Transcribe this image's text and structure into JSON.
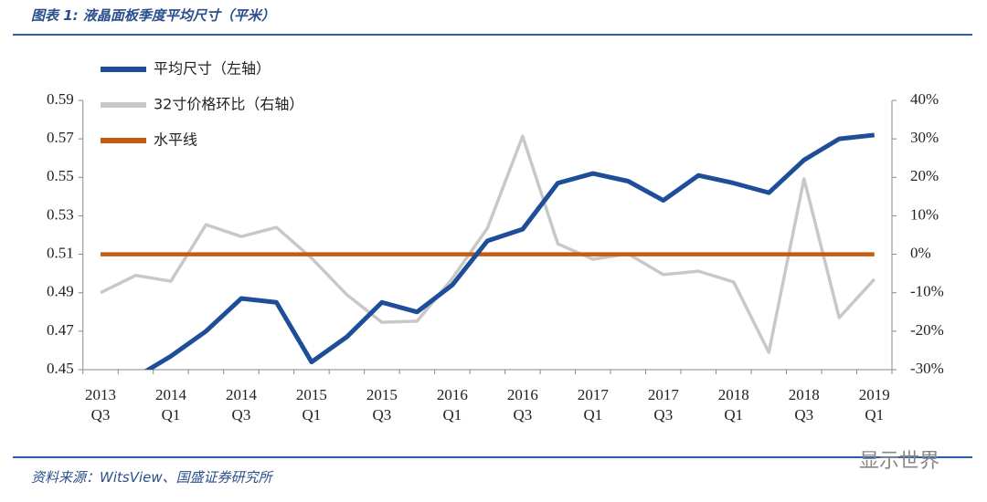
{
  "chart_data": {
    "type": "line",
    "title": "图表 1: 液晶面板季度平均尺寸（平米）",
    "source": "资料来源：WitsView、国盛证券研究所",
    "watermark": "显示世界",
    "categories": [
      "2013\nQ3",
      null,
      "2014\nQ1",
      null,
      "2014\nQ3",
      null,
      "2015\nQ1",
      null,
      "2015\nQ3",
      null,
      "2016\nQ1",
      null,
      "2016\nQ3",
      null,
      "2017\nQ1",
      null,
      "2017\nQ3",
      null,
      "2018\nQ1",
      null,
      "2018\nQ3",
      null,
      "2019\nQ1"
    ],
    "ylim": [
      0.45,
      0.59
    ],
    "yticks": [
      0.45,
      0.47,
      0.49,
      0.51,
      0.53,
      0.55,
      0.57,
      0.59
    ],
    "y2lim": [
      -30,
      40
    ],
    "y2ticks": [
      {
        "value": -30,
        "label": "-30%"
      },
      {
        "value": -20,
        "label": "-20%"
      },
      {
        "value": -10,
        "label": "-10%"
      },
      {
        "value": 0,
        "label": "0%"
      },
      {
        "value": 10,
        "label": "10%"
      },
      {
        "value": 20,
        "label": "20%"
      },
      {
        "value": 30,
        "label": "30%"
      },
      {
        "value": 40,
        "label": "40%"
      }
    ],
    "series": [
      {
        "name": "平均尺寸（左轴）",
        "color": "#1f4e99",
        "axis": "y",
        "values": [
          null,
          0.446,
          0.457,
          0.47,
          0.487,
          0.485,
          0.454,
          0.467,
          0.485,
          0.48,
          0.494,
          0.517,
          0.523,
          0.547,
          0.552,
          0.548,
          0.538,
          0.551,
          0.547,
          0.542,
          0.559,
          0.57,
          0.572
        ]
      },
      {
        "name": "32寸价格环比（右轴）",
        "color": "#c8c8c8",
        "axis": "y2",
        "values": [
          -10,
          -5.5,
          -7,
          7.7,
          4.6,
          7,
          -1,
          -10.5,
          -17.7,
          -17.4,
          -6.3,
          6.8,
          30.7,
          2.7,
          -1.3,
          0.1,
          -5.3,
          -4.4,
          -7.2,
          -25.5,
          19.6,
          -16.5,
          -6.5
        ]
      },
      {
        "name": "水平线",
        "color": "#c55a11",
        "axis": "y",
        "values": [
          0.51,
          0.51,
          0.51,
          0.51,
          0.51,
          0.51,
          0.51,
          0.51,
          0.51,
          0.51,
          0.51,
          0.51,
          0.51,
          0.51,
          0.51,
          0.51,
          0.51,
          0.51,
          0.51,
          0.51,
          0.51,
          0.51,
          0.51
        ]
      }
    ]
  }
}
